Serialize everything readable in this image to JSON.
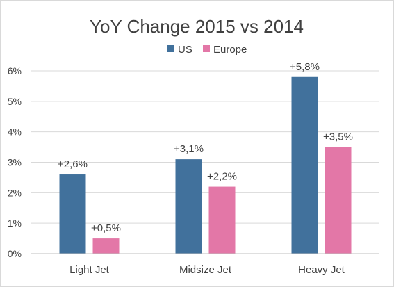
{
  "chart_data": {
    "type": "bar",
    "title": "YoY Change 2015 vs 2014",
    "categories": [
      "Light Jet",
      "Midsize Jet",
      "Heavy Jet"
    ],
    "series": [
      {
        "name": "US",
        "color": "#41719c",
        "values": [
          2.6,
          3.1,
          5.8
        ],
        "labels": [
          "+2,6%",
          "+3,1%",
          "+5,8%"
        ]
      },
      {
        "name": "Europe",
        "color": "#e377a7",
        "values": [
          0.5,
          2.2,
          3.5
        ],
        "labels": [
          "+0,5%",
          "+2,2%",
          "+3,5%"
        ]
      }
    ],
    "ylim": [
      0,
      6
    ],
    "yticks": [
      "0%",
      "1%",
      "2%",
      "3%",
      "4%",
      "5%",
      "6%"
    ],
    "grid": true,
    "legend_position": "top"
  }
}
